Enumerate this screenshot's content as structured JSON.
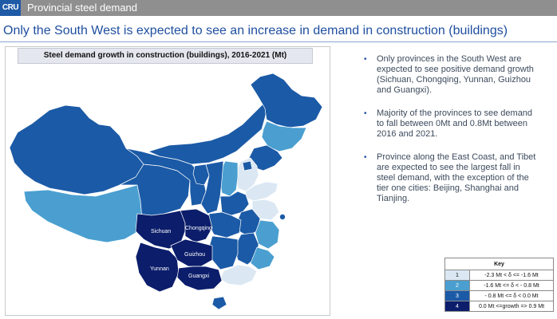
{
  "header": {
    "logo_text": "CRU",
    "section_label": "Provincial steel demand"
  },
  "headline": "Only the South West is expected to see an increase in demand in construction (buildings)",
  "map": {
    "title": "Steel demand growth in construction (buildings), 2016-2021 (Mt)",
    "province_labels": {
      "sichuan": "Sichuan",
      "chongqing": "Chongqing",
      "guizhou": "Guizhou",
      "yunnan": "Yunnan",
      "guangxi": "Guangxi"
    }
  },
  "bullets": [
    "Only provinces in the South West are expected to see positive demand growth (Sichuan, Chongqing, Yunnan, Guizhou and Guangxi).",
    "Majority of the provinces to see demand to fall between 0Mt and 0.8Mt between 2016 and 2021.",
    "Province along the East Coast, and Tibet are expected to see the largest fall in steel demand, with the exception of the tier one cities: Beijing, Shanghai and Tianjing."
  ],
  "key": {
    "title": "Key",
    "rows": [
      {
        "num": "1",
        "range": "-2.3 Mt < δ <= -1.6 Mt",
        "color": "#dbe8f3"
      },
      {
        "num": "2",
        "range": "-1.6 Mt <= δ < - 0.8 Mt",
        "color": "#4a9fd0"
      },
      {
        "num": "3",
        "range": "- 0.8 Mt <= δ < 0.0 Mt",
        "color": "#1b5aa6"
      },
      {
        "num": "4",
        "range": "0.0 Mt <=growth =>  0.9 Mt",
        "color": "#0b1d6b"
      }
    ]
  }
}
